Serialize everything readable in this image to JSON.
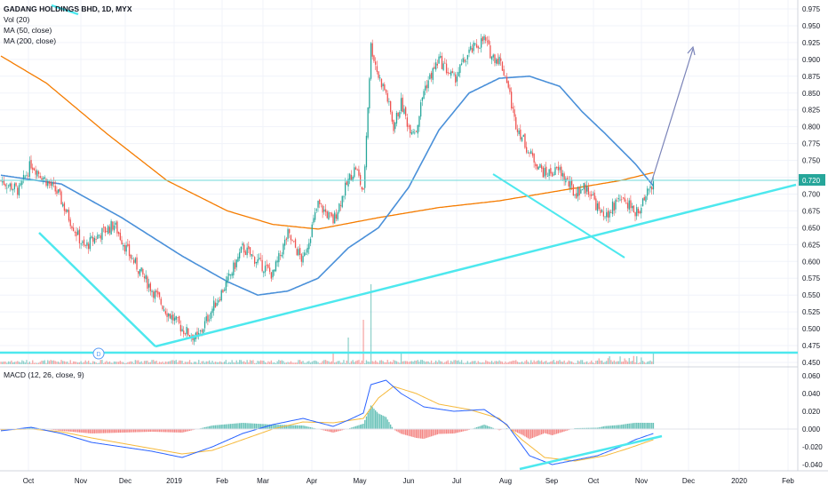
{
  "chart_data": {
    "type": "candlestick",
    "symbol_title": "GADANG HOLDINGS BHD, 1D, MYX",
    "indicators": [
      "Vol (20)",
      "MA (50, close)",
      "MA (200, close)"
    ],
    "macd_title": "MACD (12, 26, close, 9)",
    "last_price": "0.720",
    "price_axis": {
      "min": 0.45,
      "max": 0.975,
      "ticks": [
        "0.975",
        "0.950",
        "0.925",
        "0.900",
        "0.875",
        "0.850",
        "0.825",
        "0.800",
        "0.775",
        "0.750",
        "0.725",
        "0.700",
        "0.675",
        "0.650",
        "0.625",
        "0.600",
        "0.575",
        "0.550",
        "0.525",
        "0.500",
        "0.475",
        "0.450"
      ]
    },
    "macd_axis": {
      "min": -0.045,
      "max": 0.065,
      "ticks": [
        "0.060",
        "0.040",
        "0.020",
        "0.000",
        "-0.020",
        "-0.040"
      ]
    },
    "time_axis": [
      "Oct",
      "Nov",
      "Dec",
      "2019",
      "Feb",
      "Mar",
      "Apr",
      "May",
      "Jun",
      "Jul",
      "Aug",
      "Sep",
      "Oct",
      "Nov",
      "Dec",
      "2020",
      "Feb"
    ],
    "dividend_marker": "D",
    "ma200_anchors": [
      [
        0,
        0.905
      ],
      [
        30,
        0.865
      ],
      [
        70,
        0.79
      ],
      [
        110,
        0.72
      ],
      [
        150,
        0.675
      ],
      [
        180,
        0.655
      ],
      [
        210,
        0.648
      ],
      [
        250,
        0.665
      ],
      [
        290,
        0.68
      ],
      [
        330,
        0.69
      ],
      [
        370,
        0.705
      ],
      [
        410,
        0.72
      ],
      [
        432,
        0.732
      ]
    ],
    "ma50_anchors": [
      [
        0,
        0.728
      ],
      [
        40,
        0.715
      ],
      [
        80,
        0.665
      ],
      [
        120,
        0.608
      ],
      [
        150,
        0.57
      ],
      [
        170,
        0.55
      ],
      [
        190,
        0.556
      ],
      [
        210,
        0.575
      ],
      [
        230,
        0.62
      ],
      [
        250,
        0.65
      ],
      [
        270,
        0.71
      ],
      [
        290,
        0.795
      ],
      [
        310,
        0.85
      ],
      [
        330,
        0.872
      ],
      [
        350,
        0.875
      ],
      [
        370,
        0.86
      ],
      [
        385,
        0.822
      ],
      [
        400,
        0.79
      ],
      [
        420,
        0.745
      ],
      [
        432,
        0.712
      ]
    ],
    "price_anchors": [
      [
        0,
        0.72
      ],
      [
        12,
        0.705
      ],
      [
        20,
        0.745
      ],
      [
        30,
        0.72
      ],
      [
        38,
        0.7
      ],
      [
        45,
        0.665
      ],
      [
        55,
        0.62
      ],
      [
        65,
        0.64
      ],
      [
        75,
        0.655
      ],
      [
        85,
        0.61
      ],
      [
        95,
        0.575
      ],
      [
        110,
        0.525
      ],
      [
        120,
        0.5
      ],
      [
        130,
        0.485
      ],
      [
        140,
        0.53
      ],
      [
        150,
        0.57
      ],
      [
        160,
        0.62
      ],
      [
        170,
        0.6
      ],
      [
        180,
        0.58
      ],
      [
        190,
        0.64
      ],
      [
        200,
        0.6
      ],
      [
        210,
        0.685
      ],
      [
        220,
        0.66
      ],
      [
        230,
        0.72
      ],
      [
        235,
        0.74
      ],
      [
        240,
        0.7
      ],
      [
        245,
        0.92
      ],
      [
        250,
        0.875
      ],
      [
        255,
        0.85
      ],
      [
        260,
        0.8
      ],
      [
        265,
        0.835
      ],
      [
        270,
        0.8
      ],
      [
        275,
        0.795
      ],
      [
        280,
        0.855
      ],
      [
        290,
        0.9
      ],
      [
        300,
        0.87
      ],
      [
        310,
        0.91
      ],
      [
        320,
        0.93
      ],
      [
        325,
        0.905
      ],
      [
        330,
        0.9
      ],
      [
        335,
        0.87
      ],
      [
        340,
        0.81
      ],
      [
        350,
        0.76
      ],
      [
        360,
        0.73
      ],
      [
        370,
        0.735
      ],
      [
        380,
        0.7
      ],
      [
        385,
        0.71
      ],
      [
        390,
        0.705
      ],
      [
        395,
        0.68
      ],
      [
        400,
        0.66
      ],
      [
        410,
        0.7
      ],
      [
        420,
        0.67
      ],
      [
        425,
        0.685
      ],
      [
        432,
        0.72
      ]
    ],
    "macd_anchors": [
      [
        0,
        -0.002
      ],
      [
        20,
        0.002
      ],
      [
        40,
        -0.005
      ],
      [
        60,
        -0.015
      ],
      [
        80,
        -0.02
      ],
      [
        100,
        -0.025
      ],
      [
        120,
        -0.032
      ],
      [
        140,
        -0.02
      ],
      [
        160,
        -0.005
      ],
      [
        180,
        0.005
      ],
      [
        200,
        0.012
      ],
      [
        220,
        0.003
      ],
      [
        230,
        0.01
      ],
      [
        240,
        0.018
      ],
      [
        245,
        0.05
      ],
      [
        255,
        0.055
      ],
      [
        265,
        0.04
      ],
      [
        280,
        0.025
      ],
      [
        300,
        0.02
      ],
      [
        320,
        0.022
      ],
      [
        335,
        0.005
      ],
      [
        350,
        -0.03
      ],
      [
        365,
        -0.04
      ],
      [
        380,
        -0.035
      ],
      [
        395,
        -0.03
      ],
      [
        410,
        -0.02
      ],
      [
        420,
        -0.012
      ],
      [
        432,
        -0.005
      ]
    ],
    "signal_anchors": [
      [
        0,
        -0.001
      ],
      [
        20,
        0.0
      ],
      [
        40,
        -0.003
      ],
      [
        60,
        -0.01
      ],
      [
        80,
        -0.016
      ],
      [
        100,
        -0.022
      ],
      [
        120,
        -0.028
      ],
      [
        140,
        -0.024
      ],
      [
        160,
        -0.012
      ],
      [
        180,
        0.0
      ],
      [
        200,
        0.008
      ],
      [
        220,
        0.007
      ],
      [
        240,
        0.012
      ],
      [
        250,
        0.035
      ],
      [
        260,
        0.048
      ],
      [
        275,
        0.04
      ],
      [
        290,
        0.028
      ],
      [
        310,
        0.022
      ],
      [
        330,
        0.012
      ],
      [
        345,
        -0.012
      ],
      [
        360,
        -0.032
      ],
      [
        380,
        -0.036
      ],
      [
        400,
        -0.03
      ],
      [
        415,
        -0.022
      ],
      [
        432,
        -0.012
      ]
    ]
  }
}
